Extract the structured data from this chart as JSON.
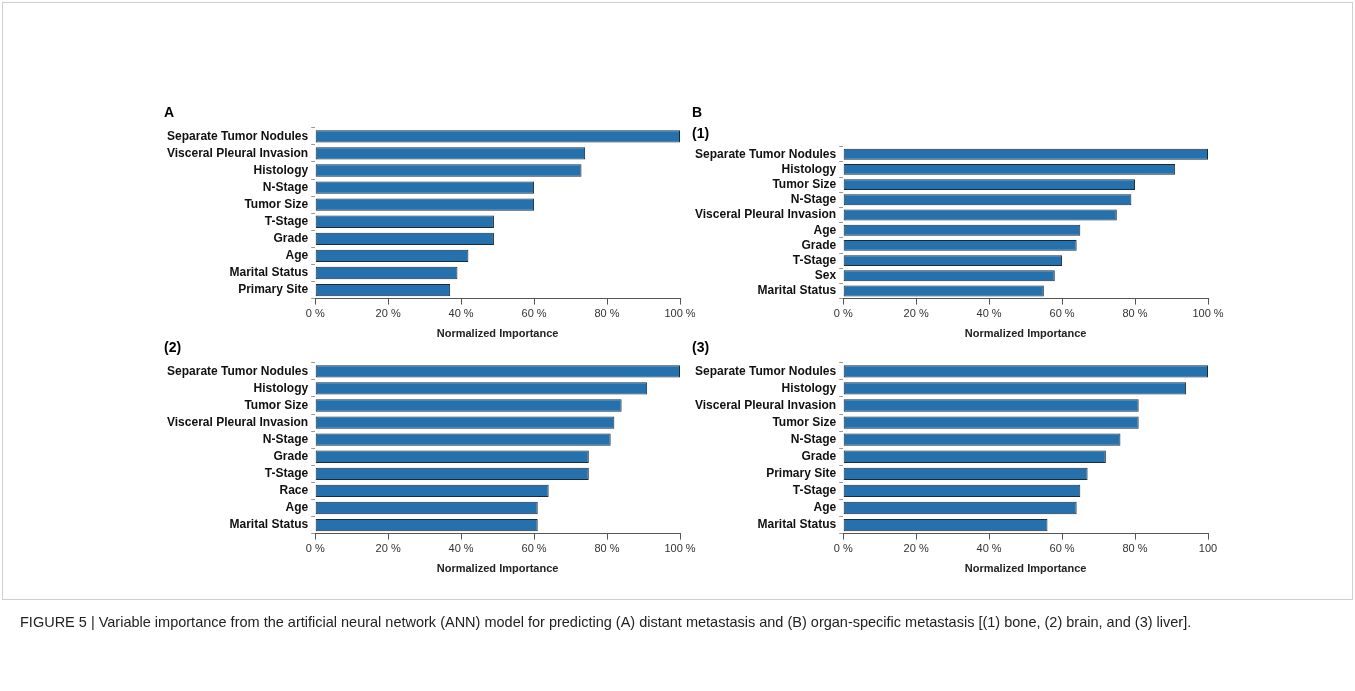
{
  "chart_data": [
    {
      "type": "bar",
      "orientation": "horizontal",
      "title": "A",
      "xlabel": "Normalized Importance",
      "categories": [
        "Separate Tumor Nodules",
        "Visceral Pleural Invasion",
        "Histology",
        "N-Stage",
        "Tumor Size",
        "T-Stage",
        "Grade",
        "Age",
        "Marital Status",
        "Primary Site"
      ],
      "values": [
        100,
        74,
        73,
        60,
        60,
        49,
        49,
        42,
        39,
        37
      ],
      "color": "#2471ae",
      "xlim": [
        0,
        100
      ],
      "xticks": [
        {
          "value": 0,
          "label": "0 %"
        },
        {
          "value": 20,
          "label": "20 %"
        },
        {
          "value": 40,
          "label": "40 %"
        },
        {
          "value": 60,
          "label": "60 %"
        },
        {
          "value": 80,
          "label": "80 %"
        },
        {
          "value": 100,
          "label": "100 %"
        }
      ]
    },
    {
      "type": "bar",
      "orientation": "horizontal",
      "title": "B",
      "subtitle": "(1)",
      "xlabel": "Normalized Importance",
      "categories": [
        "Separate Tumor Nodules",
        "Histology",
        "Tumor Size",
        "N-Stage",
        "Visceral Pleural Invasion",
        "Age",
        "Grade",
        "T-Stage",
        "Sex",
        "Marital Status"
      ],
      "values": [
        100,
        91,
        80,
        79,
        75,
        65,
        64,
        60,
        58,
        55
      ],
      "color": "#2471ae",
      "xlim": [
        0,
        100
      ],
      "xticks": [
        {
          "value": 0,
          "label": "0 %"
        },
        {
          "value": 20,
          "label": "20 %"
        },
        {
          "value": 40,
          "label": "40 %"
        },
        {
          "value": 60,
          "label": "60 %"
        },
        {
          "value": 80,
          "label": "80 %"
        },
        {
          "value": 100,
          "label": "100 %"
        }
      ]
    },
    {
      "type": "bar",
      "orientation": "horizontal",
      "title": "(2)",
      "xlabel": "Normalized Importance",
      "categories": [
        "Separate Tumor Nodules",
        "Histology",
        "Tumor Size",
        "Visceral Pleural Invasion",
        "N-Stage",
        "Grade",
        "T-Stage",
        "Race",
        "Age",
        "Marital Status"
      ],
      "values": [
        100,
        91,
        84,
        82,
        81,
        75,
        75,
        64,
        61,
        61
      ],
      "color": "#2471ae",
      "xlim": [
        0,
        100
      ],
      "xticks": [
        {
          "value": 0,
          "label": "0 %"
        },
        {
          "value": 20,
          "label": "20 %"
        },
        {
          "value": 40,
          "label": "40 %"
        },
        {
          "value": 60,
          "label": "60 %"
        },
        {
          "value": 80,
          "label": "80 %"
        },
        {
          "value": 100,
          "label": "100 %"
        }
      ]
    },
    {
      "type": "bar",
      "orientation": "horizontal",
      "title": "(3)",
      "xlabel": "Normalized Importance",
      "categories": [
        "Separate Tumor Nodules",
        "Histology",
        "Visceral Pleural Invasion",
        "Tumor Size",
        "N-Stage",
        "Grade",
        "Primary Site",
        "T-Stage",
        "Age",
        "Marital Status"
      ],
      "values": [
        100,
        94,
        81,
        81,
        76,
        72,
        67,
        65,
        64,
        56
      ],
      "color": "#2471ae",
      "xlim": [
        0,
        100
      ],
      "xticks": [
        {
          "value": 0,
          "label": "0 %"
        },
        {
          "value": 20,
          "label": "20 %"
        },
        {
          "value": 40,
          "label": "40 %"
        },
        {
          "value": 60,
          "label": "60 %"
        },
        {
          "value": 80,
          "label": "80 %"
        },
        100
      ],
      "annotations": [
        "FIGURE 5 | Variable importance from the artificial neural network (ANN) model for predicting (A) distant metastasis and (B) organ-specific metastasis [(1) bone, (2) brain, and (3) liver]."
      ]
    }
  ]
}
